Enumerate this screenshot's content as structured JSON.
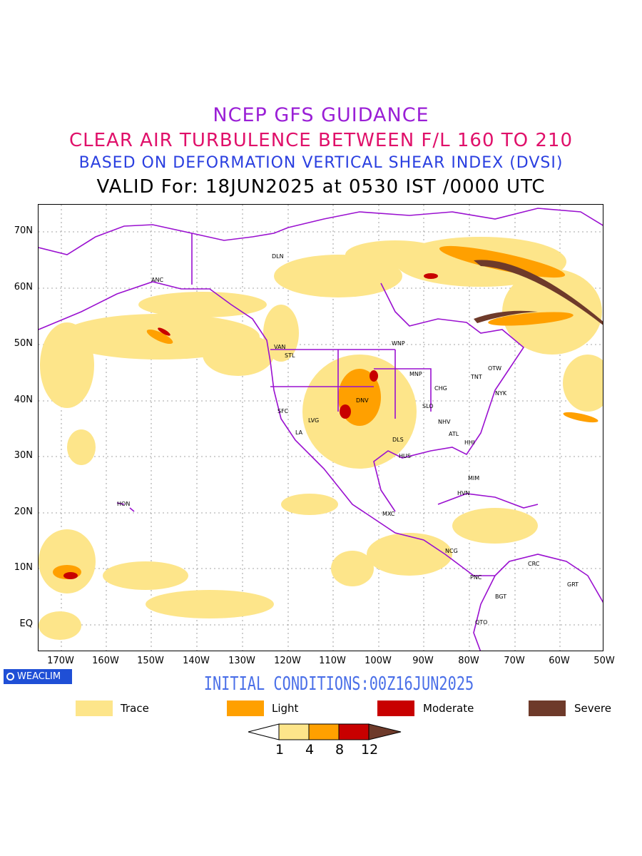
{
  "titles": {
    "line1": "NCEP GFS GUIDANCE",
    "line2": "CLEAR AIR TURBULENCE BETWEEN F/L 160 TO 210",
    "line3": "BASED ON DEFORMATION VERTICAL SHEAR INDEX (DVSI)",
    "line4": "VALID For: 18JUN2025 at 0530 IST /0000 UTC"
  },
  "axes": {
    "lat_labels": [
      "70N",
      "60N",
      "50N",
      "40N",
      "30N",
      "20N",
      "10N",
      "EQ"
    ],
    "lon_labels": [
      "170W",
      "160W",
      "150W",
      "140W",
      "130W",
      "120W",
      "110W",
      "100W",
      "90W",
      "80W",
      "70W",
      "60W",
      "50W"
    ]
  },
  "stations": [
    "DLN",
    "ANC",
    "VAN",
    "STL",
    "WNP",
    "MNP",
    "OTW",
    "TNT",
    "CHG",
    "NYK",
    "DNV",
    "SFC",
    "LVG",
    "SLO",
    "NHV",
    "ATL",
    "LA",
    "DLS",
    "HHI",
    "HUS",
    "MIM",
    "HVN",
    "HON",
    "MXC",
    "NCG",
    "CRC",
    "PNC",
    "GRT",
    "BGT",
    "QTO"
  ],
  "branding": {
    "logo_text": "WEACLIM"
  },
  "initial_conditions": "INITIAL CONDITIONS:00Z16JUN2025",
  "legend": {
    "items": [
      {
        "label": "Trace",
        "color": "#fde58a"
      },
      {
        "label": "Light",
        "color": "#ffa000"
      },
      {
        "label": "Moderate",
        "color": "#c80000"
      },
      {
        "label": "Severe",
        "color": "#6e3a2a"
      }
    ]
  },
  "colorbar": {
    "ticks": [
      "1",
      "4",
      "8",
      "12"
    ]
  },
  "colors": {
    "coast": "#9a10d0",
    "title1": "#9a1fd6",
    "title2": "#e0106a",
    "title3": "#2a3fe0",
    "init": "#4a6fe8"
  }
}
